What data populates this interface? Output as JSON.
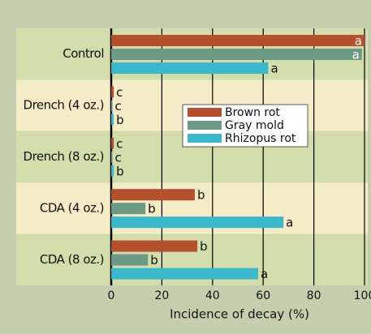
{
  "chart_data": {
    "type": "bar",
    "orientation": "horizontal",
    "categories": [
      "Control",
      "Drench (4 oz.)",
      "Drench (8 oz.)",
      "CDA (4 oz.)",
      "CDA (8 oz.)"
    ],
    "series": [
      {
        "name": "Brown rot",
        "color": "#b5502c",
        "values": [
          100,
          1,
          1,
          33,
          34
        ],
        "letters": [
          "a",
          "c",
          "c",
          "b",
          "b"
        ]
      },
      {
        "name": "Gray mold",
        "color": "#6d9a85",
        "values": [
          99,
          0.5,
          0.5,
          13.5,
          14.5
        ],
        "letters": [
          "a",
          "c",
          "c",
          "b",
          "b"
        ]
      },
      {
        "name": "Rhizopus rot",
        "color": "#3bb8cc",
        "values": [
          62,
          1,
          1,
          68,
          58
        ],
        "letters": [
          "a",
          "b",
          "b",
          "a",
          "a"
        ]
      }
    ],
    "xlabel": "Incidence of decay (%)",
    "xlim": [
      0,
      100
    ],
    "xticks": [
      0,
      20,
      40,
      60,
      80,
      100
    ],
    "grid": true
  }
}
